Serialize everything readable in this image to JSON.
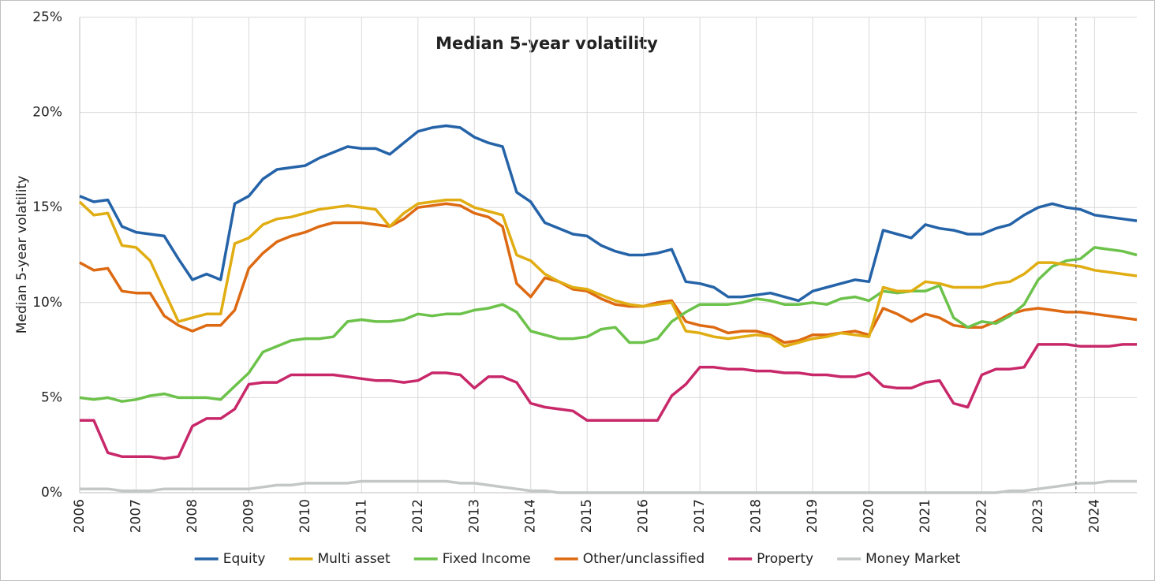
{
  "chart_data": {
    "type": "line",
    "title": "Median 5-year volatility",
    "y_label": "Median 5-year volatility",
    "x": [
      2006,
      2006.25,
      2006.5,
      2006.75,
      2007,
      2007.25,
      2007.5,
      2007.75,
      2008,
      2008.25,
      2008.5,
      2008.75,
      2009,
      2009.25,
      2009.5,
      2009.75,
      2010,
      2010.25,
      2010.5,
      2010.75,
      2011,
      2011.25,
      2011.5,
      2011.75,
      2012,
      2012.25,
      2012.5,
      2012.75,
      2013,
      2013.25,
      2013.5,
      2013.75,
      2014,
      2014.25,
      2014.5,
      2014.75,
      2015,
      2015.25,
      2015.5,
      2015.75,
      2016,
      2016.25,
      2016.5,
      2016.75,
      2017,
      2017.25,
      2017.5,
      2017.75,
      2018,
      2018.25,
      2018.5,
      2018.75,
      2019,
      2019.25,
      2019.5,
      2019.75,
      2020,
      2020.25,
      2020.5,
      2020.75,
      2021,
      2021.25,
      2021.5,
      2021.75,
      2022,
      2022.25,
      2022.5,
      2022.75,
      2023,
      2023.25,
      2023.5,
      2023.75,
      2024,
      2024.25,
      2024.5,
      2024.75
    ],
    "series": [
      {
        "name": "Equity",
        "color": "#2563a8",
        "values": [
          15.6,
          15.3,
          15.4,
          14.0,
          13.7,
          13.6,
          13.5,
          12.3,
          11.2,
          11.5,
          11.2,
          15.2,
          15.6,
          16.5,
          17.0,
          17.1,
          17.2,
          17.6,
          17.9,
          18.2,
          18.1,
          18.1,
          17.8,
          18.4,
          19.0,
          19.2,
          19.3,
          19.2,
          18.7,
          18.4,
          18.2,
          15.8,
          15.3,
          14.2,
          13.9,
          13.6,
          13.5,
          13.0,
          12.7,
          12.5,
          12.5,
          12.6,
          12.8,
          11.1,
          11.0,
          10.8,
          10.3,
          10.3,
          10.4,
          10.5,
          10.3,
          10.1,
          10.6,
          10.8,
          11.0,
          11.2,
          11.1,
          13.8,
          13.6,
          13.4,
          14.1,
          13.9,
          13.8,
          13.6,
          13.6,
          13.9,
          14.1,
          14.6,
          15.0,
          15.2,
          15.0,
          14.9,
          14.6,
          14.5,
          14.4,
          14.3
        ]
      },
      {
        "name": "Multi asset",
        "color": "#e0ad12",
        "values": [
          15.3,
          14.6,
          14.7,
          13.0,
          12.9,
          12.2,
          10.6,
          9.0,
          9.2,
          9.4,
          9.4,
          13.1,
          13.4,
          14.1,
          14.4,
          14.5,
          14.7,
          14.9,
          15.0,
          15.1,
          15.0,
          14.9,
          14.0,
          14.7,
          15.2,
          15.3,
          15.4,
          15.4,
          15.0,
          14.8,
          14.6,
          12.5,
          12.2,
          11.5,
          11.1,
          10.8,
          10.7,
          10.4,
          10.1,
          9.9,
          9.8,
          9.9,
          10.0,
          8.5,
          8.4,
          8.2,
          8.1,
          8.2,
          8.3,
          8.2,
          7.7,
          7.9,
          8.1,
          8.2,
          8.4,
          8.3,
          8.2,
          10.8,
          10.6,
          10.6,
          11.1,
          11.0,
          10.8,
          10.8,
          10.8,
          11.0,
          11.1,
          11.5,
          12.1,
          12.1,
          12.0,
          11.9,
          11.7,
          11.6,
          11.5,
          11.4
        ]
      },
      {
        "name": "Fixed Income",
        "color": "#6cc24a",
        "values": [
          5.0,
          4.9,
          5.0,
          4.8,
          4.9,
          5.1,
          5.2,
          5.0,
          5.0,
          5.0,
          4.9,
          5.6,
          6.3,
          7.4,
          7.7,
          8.0,
          8.1,
          8.1,
          8.2,
          9.0,
          9.1,
          9.0,
          9.0,
          9.1,
          9.4,
          9.3,
          9.4,
          9.4,
          9.6,
          9.7,
          9.9,
          9.5,
          8.5,
          8.3,
          8.1,
          8.1,
          8.2,
          8.6,
          8.7,
          7.9,
          7.9,
          8.1,
          9.0,
          9.5,
          9.9,
          9.9,
          9.9,
          10.0,
          10.2,
          10.1,
          9.9,
          9.9,
          10.0,
          9.9,
          10.2,
          10.3,
          10.1,
          10.6,
          10.5,
          10.6,
          10.6,
          10.9,
          9.2,
          8.7,
          9.0,
          8.9,
          9.3,
          9.9,
          11.2,
          11.9,
          12.2,
          12.3,
          12.9,
          12.8,
          12.7,
          12.5
        ]
      },
      {
        "name": "Other/unclassified",
        "color": "#dd6a12",
        "values": [
          12.1,
          11.7,
          11.8,
          10.6,
          10.5,
          10.5,
          9.3,
          8.8,
          8.5,
          8.8,
          8.8,
          9.6,
          11.8,
          12.6,
          13.2,
          13.5,
          13.7,
          14.0,
          14.2,
          14.2,
          14.2,
          14.1,
          14.0,
          14.4,
          15.0,
          15.1,
          15.2,
          15.1,
          14.7,
          14.5,
          14.0,
          11.0,
          10.3,
          11.3,
          11.1,
          10.7,
          10.6,
          10.2,
          9.9,
          9.8,
          9.8,
          10.0,
          10.1,
          9.0,
          8.8,
          8.7,
          8.4,
          8.5,
          8.5,
          8.3,
          7.9,
          8.0,
          8.3,
          8.3,
          8.4,
          8.5,
          8.3,
          9.7,
          9.4,
          9.0,
          9.4,
          9.2,
          8.8,
          8.7,
          8.7,
          9.0,
          9.4,
          9.6,
          9.7,
          9.6,
          9.5,
          9.5,
          9.4,
          9.3,
          9.2,
          9.1
        ]
      },
      {
        "name": "Property",
        "color": "#c8286a",
        "values": [
          3.8,
          3.8,
          2.1,
          1.9,
          1.9,
          1.9,
          1.8,
          1.9,
          3.5,
          3.9,
          3.9,
          4.4,
          5.7,
          5.8,
          5.8,
          6.2,
          6.2,
          6.2,
          6.2,
          6.1,
          6.0,
          5.9,
          5.9,
          5.8,
          5.9,
          6.3,
          6.3,
          6.2,
          5.5,
          6.1,
          6.1,
          5.8,
          4.7,
          4.5,
          4.4,
          4.3,
          3.8,
          3.8,
          3.8,
          3.8,
          3.8,
          3.8,
          5.1,
          5.7,
          6.6,
          6.6,
          6.5,
          6.5,
          6.4,
          6.4,
          6.3,
          6.3,
          6.2,
          6.2,
          6.1,
          6.1,
          6.3,
          5.6,
          5.5,
          5.5,
          5.8,
          5.9,
          4.7,
          4.5,
          6.2,
          6.5,
          6.5,
          6.6,
          7.8,
          7.8,
          7.8,
          7.7,
          7.7,
          7.7,
          7.8,
          7.8
        ]
      },
      {
        "name": "Money Market",
        "color": "#c3c7c6",
        "values": [
          0.2,
          0.2,
          0.2,
          0.1,
          0.1,
          0.1,
          0.2,
          0.2,
          0.2,
          0.2,
          0.2,
          0.2,
          0.2,
          0.3,
          0.4,
          0.4,
          0.5,
          0.5,
          0.5,
          0.5,
          0.6,
          0.6,
          0.6,
          0.6,
          0.6,
          0.6,
          0.6,
          0.5,
          0.5,
          0.4,
          0.3,
          0.2,
          0.1,
          0.1,
          0.0,
          0.0,
          0.0,
          0.0,
          0.0,
          0.0,
          0.0,
          0.0,
          0.0,
          0.0,
          0.0,
          0.0,
          0.0,
          0.0,
          0.0,
          0.0,
          0.0,
          0.0,
          0.0,
          0.0,
          0.0,
          0.0,
          0.0,
          0.0,
          0.0,
          0.0,
          0.0,
          0.0,
          0.0,
          0.0,
          0.0,
          0.0,
          0.1,
          0.1,
          0.2,
          0.3,
          0.4,
          0.5,
          0.5,
          0.6,
          0.6,
          0.6
        ]
      }
    ],
    "xlim": [
      2006,
      2024.75
    ],
    "xticks": [
      2006,
      2007,
      2008,
      2009,
      2010,
      2011,
      2012,
      2013,
      2014,
      2015,
      2016,
      2017,
      2018,
      2019,
      2020,
      2021,
      2022,
      2023,
      2024
    ],
    "ylim": [
      0,
      25
    ],
    "yticks": [
      {
        "value": 0,
        "label": "0%"
      },
      {
        "value": 5,
        "label": "5%"
      },
      {
        "value": 10,
        "label": "10%"
      },
      {
        "value": 15,
        "label": "15%"
      },
      {
        "value": 20,
        "label": "20%"
      },
      {
        "value": 25,
        "label": "25%"
      }
    ],
    "grid": true,
    "legend": "bottom",
    "vline": 2023.67
  }
}
